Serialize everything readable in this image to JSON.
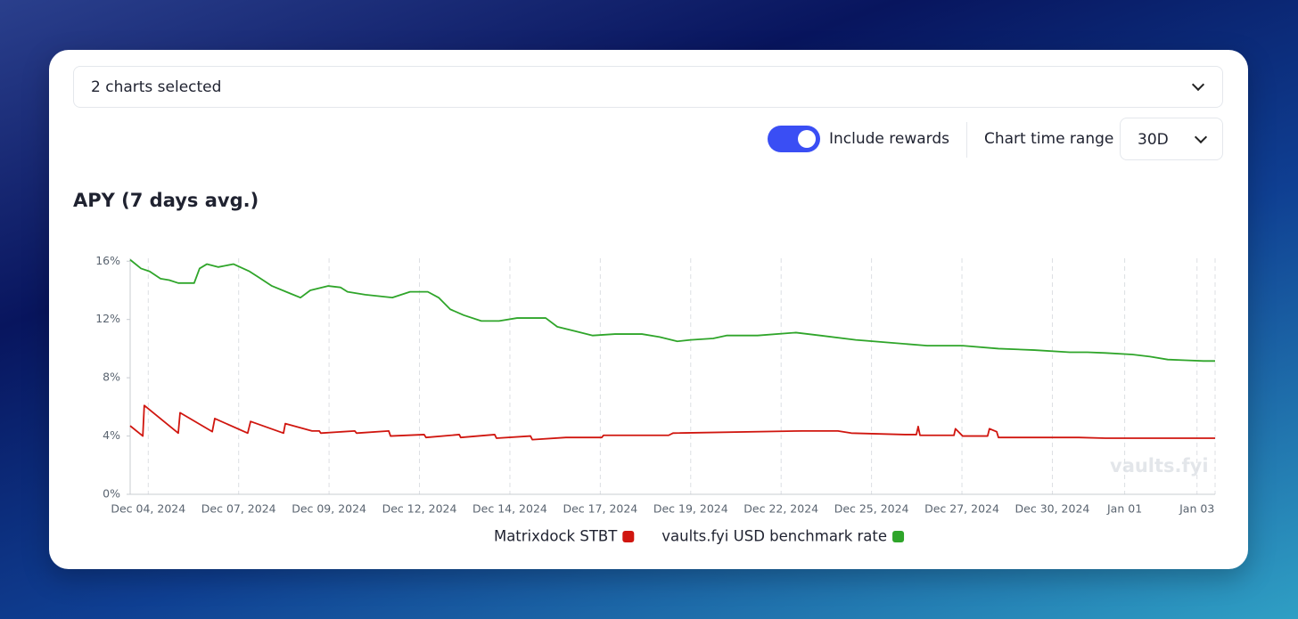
{
  "selector": {
    "label": "2 charts selected"
  },
  "controls": {
    "toggle_label": "Include rewards",
    "toggle_on": true,
    "range_label": "Chart time range",
    "range_value": "30D"
  },
  "watermark": "vaults.fyi",
  "chart_data": {
    "type": "line",
    "title": "APY (7 days avg.)",
    "xlim": [
      0,
      30
    ],
    "xticks": [
      {
        "value": 0.5,
        "label": "Dec 04, 2024"
      },
      {
        "value": 3,
        "label": "Dec 07, 2024"
      },
      {
        "value": 5.5,
        "label": "Dec 09, 2024"
      },
      {
        "value": 8,
        "label": "Dec 12, 2024"
      },
      {
        "value": 10.5,
        "label": "Dec 14, 2024"
      },
      {
        "value": 13,
        "label": "Dec 17, 2024"
      },
      {
        "value": 15.5,
        "label": "Dec 19, 2024"
      },
      {
        "value": 18,
        "label": "Dec 22, 2024"
      },
      {
        "value": 20.5,
        "label": "Dec 25, 2024"
      },
      {
        "value": 23,
        "label": "Dec 27, 2024"
      },
      {
        "value": 25.5,
        "label": "Dec 30, 2024"
      },
      {
        "value": 27.5,
        "label": "Jan 01"
      },
      {
        "value": 29.5,
        "label": "Jan 03"
      }
    ],
    "ylim": [
      0,
      16.2
    ],
    "yticks": [
      {
        "value": 0,
        "label": "0%"
      },
      {
        "value": 4,
        "label": "4%"
      },
      {
        "value": 8,
        "label": "8%"
      },
      {
        "value": 12,
        "label": "12%"
      },
      {
        "value": 16,
        "label": "16%"
      }
    ],
    "grid": "x",
    "series": [
      {
        "name": "Matrixdock STBT",
        "color": "#d0160f",
        "x": [
          0,
          0.35,
          0.39,
          1.33,
          1.38,
          2.27,
          2.34,
          3.25,
          3.33,
          4.24,
          4.29,
          5.03,
          5.23,
          5.27,
          6.21,
          6.26,
          7.15,
          7.2,
          8.13,
          8.18,
          9.1,
          9.14,
          10.08,
          10.13,
          11.07,
          11.12,
          12.05,
          13.04,
          13.09,
          14.89,
          15.01,
          18.59,
          19.57,
          19.94,
          21.42,
          21.74,
          21.79,
          21.84,
          22.78,
          22.82,
          23.02,
          23.71,
          23.76,
          23.96,
          24.01,
          26.23,
          26.97,
          28.44,
          30
        ],
        "values": [
          4.7,
          4.0,
          6.1,
          4.2,
          5.6,
          4.3,
          5.2,
          4.2,
          5.0,
          4.2,
          4.85,
          4.35,
          4.35,
          4.2,
          4.35,
          4.2,
          4.35,
          4.0,
          4.1,
          3.9,
          4.1,
          3.9,
          4.1,
          3.85,
          4.0,
          3.75,
          3.9,
          3.9,
          4.05,
          4.05,
          4.2,
          4.35,
          4.35,
          4.2,
          4.1,
          4.1,
          4.65,
          4.05,
          4.05,
          4.5,
          4.0,
          4.0,
          4.5,
          4.3,
          3.9,
          3.9,
          3.85,
          3.85,
          3.85
        ]
      },
      {
        "name": "vaults.fyi USD benchmark rate",
        "color": "#2fa52a",
        "x": [
          0,
          0.3,
          0.54,
          0.84,
          1.08,
          1.33,
          1.77,
          1.92,
          2.12,
          2.44,
          2.86,
          3.3,
          3.55,
          3.92,
          4.41,
          4.71,
          4.98,
          5.47,
          5.82,
          6.01,
          6.5,
          7.25,
          7.74,
          8.23,
          8.53,
          8.85,
          9.22,
          9.71,
          10.2,
          10.7,
          11.49,
          11.81,
          12.3,
          12.79,
          13.41,
          14.15,
          14.64,
          15.13,
          15.5,
          16.12,
          16.49,
          17.35,
          18.41,
          19.08,
          20.06,
          21.05,
          22.04,
          23.02,
          24.01,
          25.0,
          25.98,
          26.47,
          26.97,
          27.7,
          28.2,
          28.69,
          29.18,
          29.68,
          30
        ],
        "values": [
          16.1,
          15.5,
          15.3,
          14.8,
          14.7,
          14.5,
          14.5,
          15.5,
          15.8,
          15.6,
          15.8,
          15.3,
          14.9,
          14.3,
          13.8,
          13.5,
          14.0,
          14.3,
          14.2,
          13.9,
          13.7,
          13.5,
          13.9,
          13.9,
          13.5,
          12.7,
          12.3,
          11.9,
          11.9,
          12.1,
          12.1,
          11.5,
          11.2,
          10.9,
          11.0,
          11.0,
          10.8,
          10.5,
          10.6,
          10.7,
          10.9,
          10.9,
          11.1,
          10.9,
          10.6,
          10.4,
          10.2,
          10.2,
          10.0,
          9.9,
          9.75,
          9.75,
          9.7,
          9.6,
          9.45,
          9.25,
          9.2,
          9.15,
          9.15
        ]
      }
    ]
  }
}
